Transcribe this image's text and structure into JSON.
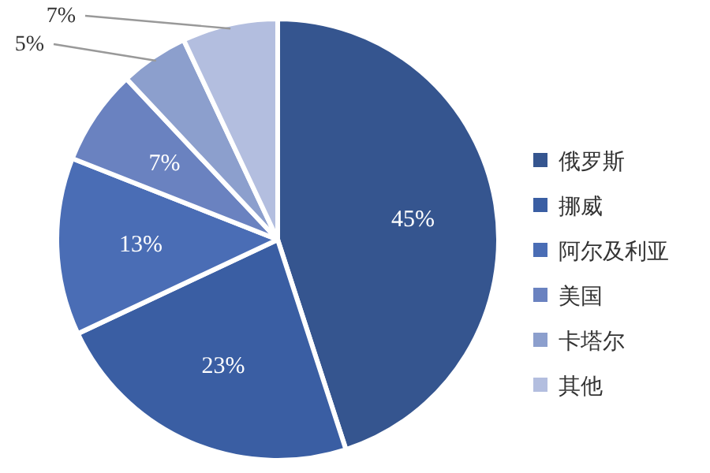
{
  "chart_data": {
    "type": "pie",
    "categories": [
      "俄罗斯",
      "挪威",
      "阿尔及利亚",
      "美国",
      "卡塔尔",
      "其他"
    ],
    "values": [
      45,
      23,
      13,
      7,
      5,
      7
    ],
    "colors": [
      "#35558f",
      "#3a5ea3",
      "#4a6db5",
      "#6a82c0",
      "#8c9fcd",
      "#b3bedf"
    ],
    "value_labels": [
      "45%",
      "23%",
      "13%",
      "7%",
      "5%",
      "7%"
    ],
    "legend": "right"
  }
}
